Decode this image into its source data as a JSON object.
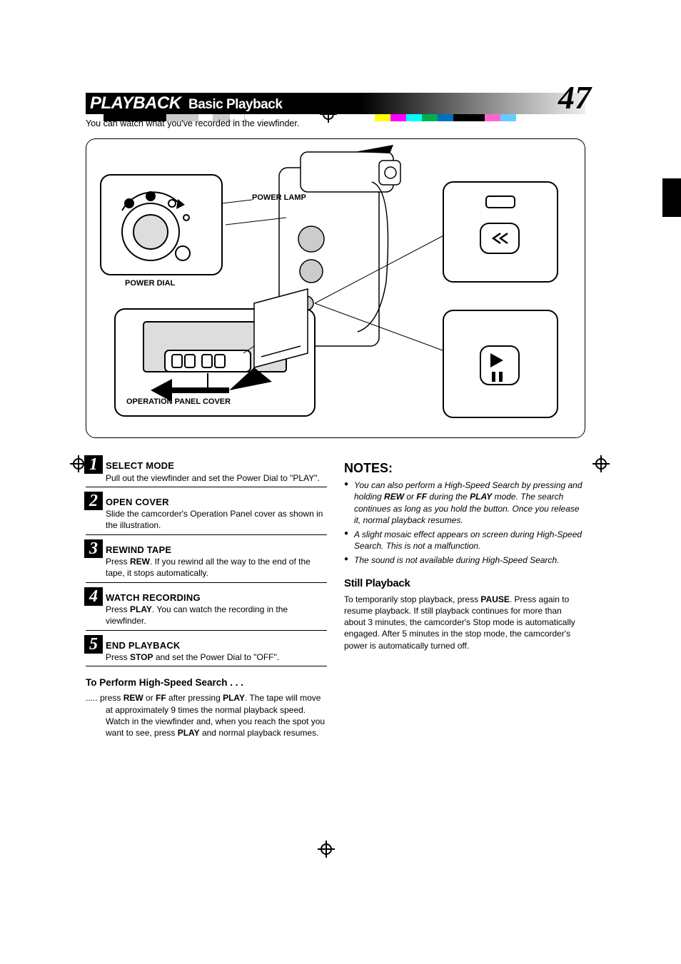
{
  "reg_colors_left": [
    "#000000",
    "#000000",
    "#000000",
    "#000000",
    "#cccccc",
    "#cccccc",
    "#ffffff",
    "#cccccc",
    "#ffffff"
  ],
  "reg_colors_right": [
    "#ffff00",
    "#ff00ff",
    "#00ffff",
    "#00b050",
    "#0070c0",
    "#000000",
    "#000000",
    "#ff66cc",
    "#66ccff"
  ],
  "header": {
    "section": "PLAYBACK",
    "title": "Basic Playback",
    "page_number": "47"
  },
  "intro": "You can watch what you've recorded in the viewfinder.",
  "diagram_labels": {
    "power_lamp": "POWER\nLAMP",
    "power_dial": "POWER DIAL",
    "operation_panel": "OPERATION PANEL\nCOVER"
  },
  "steps": [
    {
      "num": "1",
      "title": "SELECT MODE",
      "body_html": "Pull out the viewfinder and set the Power Dial to \"PLAY\"."
    },
    {
      "num": "2",
      "title": "OPEN COVER",
      "body_html": "Slide the camcorder's Operation Panel cover as shown in the illustration."
    },
    {
      "num": "3",
      "title": "REWIND TAPE",
      "body_html": "Press <b>REW</b>. If you rewind all the way to the end of the tape, it stops automatically."
    },
    {
      "num": "4",
      "title": "WATCH RECORDING",
      "body_html": "Press <b>PLAY</b>. You can watch the recording in the viewfinder."
    },
    {
      "num": "5",
      "title": "END PLAYBACK",
      "body_html": "Press <b>STOP</b> and set the Power Dial to \"OFF\"."
    }
  ],
  "hss": {
    "heading": "To Perform High-Speed Search . . .",
    "body_html": "..... press <b>REW</b> or <b>FF</b> after pressing <b>PLAY</b>. The tape will move at approximately 9 times the normal playback speed. Watch in the viewfinder and, when you reach the spot you want to see, press <b>PLAY</b> and normal playback resumes."
  },
  "notes": {
    "heading": "NOTES:",
    "items": [
      "You can also perform a High-Speed Search by pressing and holding <b>REW</b> or <b>FF</b> during the <b>PLAY</b> mode. The search continues as long as you hold the button. Once you release it, normal playback resumes.",
      "A slight mosaic effect appears on screen during High-Speed Search. This is not a malfunction.",
      "The sound is not available during High-Speed Search."
    ]
  },
  "still": {
    "heading": "Still Playback",
    "body_html": "To temporarily stop playback, press <b>PAUSE</b>. Press again to resume playback. If still playback continues for more than about 3 minutes, the camcorder's Stop mode is automatically engaged. After 5 minutes in the stop mode, the camcorder's power is automatically turned off."
  }
}
